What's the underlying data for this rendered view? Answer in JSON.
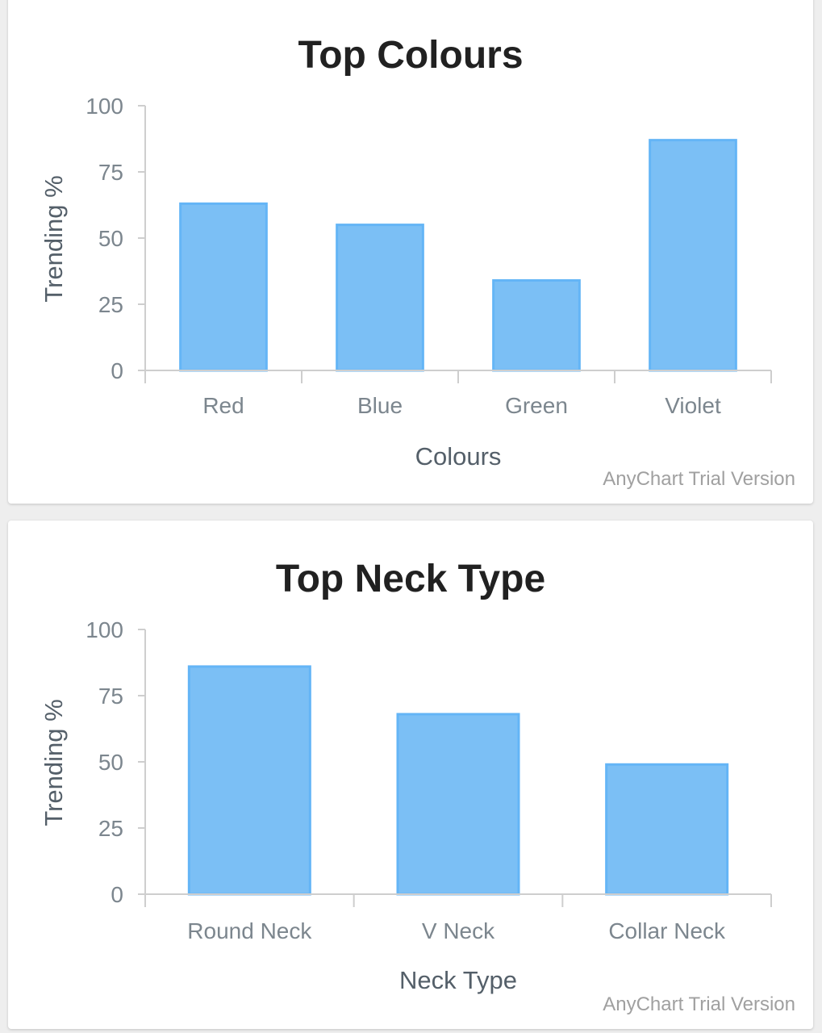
{
  "credits": "AnyChart Trial Version",
  "colors": {
    "bar_fill": "#7bbff5",
    "bar_stroke": "#64b5f6",
    "axis": "#cecece",
    "tick_text": "#7c868e",
    "title_text": "#212121"
  },
  "chart_data": [
    {
      "type": "bar",
      "title": "Top Colours",
      "xlabel": "Colours",
      "ylabel": "Trending %",
      "ylim": [
        0,
        100
      ],
      "yticks": [
        0,
        25,
        50,
        75,
        100
      ],
      "categories": [
        "Red",
        "Blue",
        "Green",
        "Violet"
      ],
      "values": [
        63,
        55,
        34,
        87
      ],
      "grid": false,
      "legend": "none"
    },
    {
      "type": "bar",
      "title": "Top Neck Type",
      "xlabel": "Neck Type",
      "ylabel": "Trending %",
      "ylim": [
        0,
        100
      ],
      "yticks": [
        0,
        25,
        50,
        75,
        100
      ],
      "categories": [
        "Round Neck",
        "V Neck",
        "Collar Neck"
      ],
      "values": [
        86,
        68,
        49
      ],
      "grid": false,
      "legend": "none"
    }
  ]
}
